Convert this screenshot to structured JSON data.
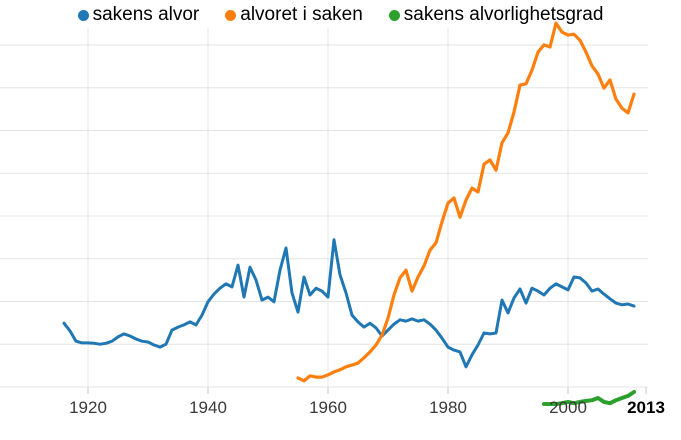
{
  "app_title": "ngram line chart",
  "colors": {
    "series_blue": "#1f77b4",
    "series_orange": "#ff7f0e",
    "series_green": "#2ca02c",
    "gridline": "#e4e4e4",
    "tick": "#c8c8c8",
    "axis_label": "#3a3a3a",
    "axis_label_last": "#000000"
  },
  "x_axis": {
    "ticks": [
      {
        "year": 1920,
        "label": "1920",
        "bold": false,
        "gridline": true
      },
      {
        "year": 1940,
        "label": "1940",
        "bold": false,
        "gridline": true
      },
      {
        "year": 1960,
        "label": "1960",
        "bold": false,
        "gridline": true
      },
      {
        "year": 1980,
        "label": "1980",
        "bold": false,
        "gridline": true
      },
      {
        "year": 2000,
        "label": "2000",
        "bold": false,
        "gridline": true
      },
      {
        "year": 2013,
        "label": "2013",
        "bold": true,
        "gridline": false
      }
    ]
  },
  "chart_data": {
    "type": "line",
    "title": "",
    "xlabel": "",
    "ylabel": "",
    "xlim": [
      1913,
      2016
    ],
    "ylim": [
      0,
      9.05
    ],
    "y_tick_labels_visible": false,
    "y_unit": "relative frequency, unlabeled axis (1 unit = 1 gridline spacing above baseline)",
    "legend_position": "top-center",
    "grid": true,
    "series": [
      {
        "name": "sakens alvor",
        "color": "#1f77b4",
        "points": [
          [
            1916,
            1.96
          ],
          [
            1917,
            1.78
          ],
          [
            1918,
            1.54
          ],
          [
            1919,
            1.5
          ],
          [
            1920,
            1.5
          ],
          [
            1921,
            1.49
          ],
          [
            1922,
            1.47
          ],
          [
            1923,
            1.49
          ],
          [
            1924,
            1.54
          ],
          [
            1925,
            1.64
          ],
          [
            1926,
            1.71
          ],
          [
            1927,
            1.66
          ],
          [
            1928,
            1.59
          ],
          [
            1929,
            1.54
          ],
          [
            1930,
            1.52
          ],
          [
            1931,
            1.45
          ],
          [
            1932,
            1.4
          ],
          [
            1933,
            1.47
          ],
          [
            1934,
            1.8
          ],
          [
            1935,
            1.87
          ],
          [
            1936,
            1.92
          ],
          [
            1937,
            1.99
          ],
          [
            1938,
            1.92
          ],
          [
            1939,
            2.15
          ],
          [
            1940,
            2.46
          ],
          [
            1941,
            2.64
          ],
          [
            1942,
            2.78
          ],
          [
            1943,
            2.88
          ],
          [
            1944,
            2.81
          ],
          [
            1945,
            3.32
          ],
          [
            1946,
            2.57
          ],
          [
            1947,
            3.27
          ],
          [
            1948,
            2.97
          ],
          [
            1949,
            2.5
          ],
          [
            1950,
            2.57
          ],
          [
            1951,
            2.46
          ],
          [
            1952,
            3.2
          ],
          [
            1953,
            3.72
          ],
          [
            1954,
            2.67
          ],
          [
            1955,
            2.22
          ],
          [
            1956,
            3.04
          ],
          [
            1957,
            2.62
          ],
          [
            1958,
            2.78
          ],
          [
            1959,
            2.71
          ],
          [
            1960,
            2.57
          ],
          [
            1961,
            3.91
          ],
          [
            1962,
            3.09
          ],
          [
            1963,
            2.67
          ],
          [
            1964,
            2.15
          ],
          [
            1965,
            1.99
          ],
          [
            1966,
            1.87
          ],
          [
            1967,
            1.96
          ],
          [
            1968,
            1.85
          ],
          [
            1969,
            1.66
          ],
          [
            1970,
            1.8
          ],
          [
            1971,
            1.94
          ],
          [
            1972,
            2.04
          ],
          [
            1973,
            2.01
          ],
          [
            1974,
            2.06
          ],
          [
            1975,
            2.01
          ],
          [
            1976,
            2.04
          ],
          [
            1977,
            1.94
          ],
          [
            1978,
            1.8
          ],
          [
            1979,
            1.61
          ],
          [
            1980,
            1.4
          ],
          [
            1981,
            1.33
          ],
          [
            1982,
            1.29
          ],
          [
            1983,
            0.94
          ],
          [
            1984,
            1.22
          ],
          [
            1985,
            1.45
          ],
          [
            1986,
            1.73
          ],
          [
            1987,
            1.71
          ],
          [
            1988,
            1.73
          ],
          [
            1989,
            2.5
          ],
          [
            1990,
            2.2
          ],
          [
            1991,
            2.55
          ],
          [
            1992,
            2.76
          ],
          [
            1993,
            2.43
          ],
          [
            1994,
            2.78
          ],
          [
            1995,
            2.71
          ],
          [
            1996,
            2.62
          ],
          [
            1997,
            2.78
          ],
          [
            1998,
            2.88
          ],
          [
            1999,
            2.81
          ],
          [
            2000,
            2.74
          ],
          [
            2001,
            3.04
          ],
          [
            2002,
            3.02
          ],
          [
            2003,
            2.9
          ],
          [
            2004,
            2.71
          ],
          [
            2005,
            2.76
          ],
          [
            2006,
            2.64
          ],
          [
            2007,
            2.53
          ],
          [
            2008,
            2.43
          ],
          [
            2009,
            2.39
          ],
          [
            2010,
            2.41
          ],
          [
            2011,
            2.36
          ]
        ]
      },
      {
        "name": "alvoret i saken",
        "color": "#ff7f0e",
        "points": [
          [
            1955,
            0.68
          ],
          [
            1956,
            0.61
          ],
          [
            1957,
            0.73
          ],
          [
            1958,
            0.7
          ],
          [
            1959,
            0.7
          ],
          [
            1960,
            0.75
          ],
          [
            1961,
            0.82
          ],
          [
            1962,
            0.87
          ],
          [
            1963,
            0.94
          ],
          [
            1964,
            0.98
          ],
          [
            1965,
            1.03
          ],
          [
            1966,
            1.15
          ],
          [
            1967,
            1.29
          ],
          [
            1968,
            1.45
          ],
          [
            1969,
            1.68
          ],
          [
            1970,
            2.08
          ],
          [
            1971,
            2.62
          ],
          [
            1972,
            3.02
          ],
          [
            1973,
            3.2
          ],
          [
            1974,
            2.71
          ],
          [
            1975,
            3.04
          ],
          [
            1976,
            3.3
          ],
          [
            1977,
            3.67
          ],
          [
            1978,
            3.84
          ],
          [
            1979,
            4.33
          ],
          [
            1980,
            4.77
          ],
          [
            1981,
            4.89
          ],
          [
            1982,
            4.44
          ],
          [
            1983,
            4.84
          ],
          [
            1984,
            5.12
          ],
          [
            1985,
            5.03
          ],
          [
            1986,
            5.68
          ],
          [
            1987,
            5.78
          ],
          [
            1988,
            5.54
          ],
          [
            1989,
            6.18
          ],
          [
            1990,
            6.41
          ],
          [
            1991,
            6.9
          ],
          [
            1992,
            7.53
          ],
          [
            1993,
            7.56
          ],
          [
            1994,
            7.88
          ],
          [
            1995,
            8.3
          ],
          [
            1996,
            8.47
          ],
          [
            1997,
            8.42
          ],
          [
            1998,
            8.98
          ],
          [
            1999,
            8.77
          ],
          [
            2000,
            8.7
          ],
          [
            2001,
            8.72
          ],
          [
            2002,
            8.58
          ],
          [
            2003,
            8.3
          ],
          [
            2004,
            7.98
          ],
          [
            2005,
            7.79
          ],
          [
            2006,
            7.46
          ],
          [
            2007,
            7.65
          ],
          [
            2008,
            7.2
          ],
          [
            2009,
            6.99
          ],
          [
            2010,
            6.88
          ],
          [
            2011,
            7.32
          ]
        ]
      },
      {
        "name": "sakens alvorlighetsgrad",
        "color": "#2ca02c",
        "points": [
          [
            1996,
            0.07
          ],
          [
            1997,
            0.07
          ],
          [
            1998,
            0.07
          ],
          [
            1999,
            0.09
          ],
          [
            2000,
            0.12
          ],
          [
            2001,
            0.09
          ],
          [
            2002,
            0.12
          ],
          [
            2003,
            0.14
          ],
          [
            2004,
            0.16
          ],
          [
            2005,
            0.21
          ],
          [
            2006,
            0.12
          ],
          [
            2007,
            0.09
          ],
          [
            2008,
            0.16
          ],
          [
            2009,
            0.21
          ],
          [
            2010,
            0.26
          ],
          [
            2011,
            0.35
          ]
        ]
      }
    ]
  }
}
